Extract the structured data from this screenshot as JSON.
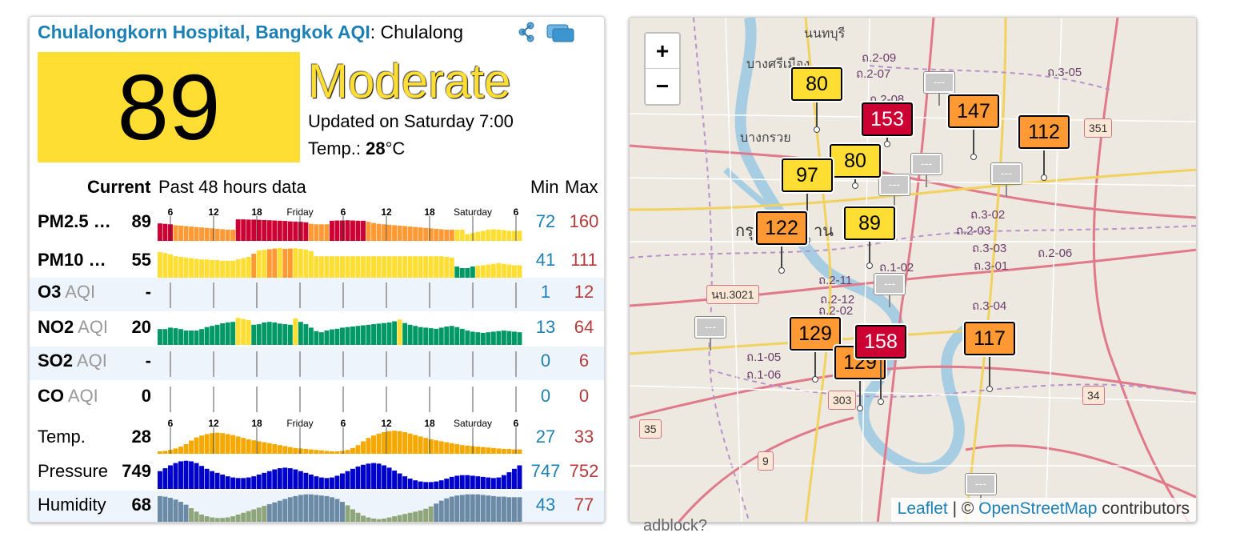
{
  "header": {
    "station_link": "Chulalongkorn Hospital, Bangkok AQI",
    "station_suffix": ": Chulalong"
  },
  "icons": {
    "share": "share-icon",
    "widget": "widget-icon"
  },
  "aqi": {
    "value": "89",
    "level": "Moderate",
    "updated": "Updated on Saturday 7:00",
    "temp_label": "Temp.: ",
    "temp_value": "28",
    "temp_unit": "°C",
    "level_color": "#ffde33"
  },
  "table": {
    "col_current": "Current",
    "col_past": "Past 48 hours data",
    "col_min": "Min",
    "col_max": "Max",
    "time_labels": [
      "6",
      "12",
      "18",
      "Friday",
      "6",
      "12",
      "18",
      "Saturday",
      "6"
    ],
    "rows": [
      {
        "name": "PM2.5 …",
        "aqi_tag": "",
        "current": "89",
        "min": "72",
        "max": "160",
        "bars": [
          0.78,
          0.76,
          0.74,
          0.7,
          0.68,
          0.66,
          0.64,
          0.62,
          0.6,
          0.58,
          0.56,
          0.54,
          0.52,
          0.5,
          0.5,
          0.96,
          0.96,
          0.95,
          0.95,
          0.94,
          0.93,
          0.92,
          0.91,
          0.9,
          0.89,
          0.87,
          0.86,
          0.85,
          0.83,
          0.76,
          0.74,
          0.74,
          0.74,
          0.9,
          0.91,
          0.91,
          0.92,
          0.91,
          0.9,
          0.9,
          0.85,
          0.8,
          0.76,
          0.74,
          0.72,
          0.7,
          0.68,
          0.66,
          0.64,
          0.62,
          0.6,
          0.58,
          0.56,
          0.54,
          0.52,
          0.5,
          0.5,
          0.5,
          0.5,
          0.3,
          0.35,
          0.4,
          0.45,
          0.5,
          0.52,
          0.5,
          0.48,
          0.45,
          0.45,
          0.45
        ],
        "colors": [
          "r",
          "r",
          "r",
          "o",
          "o",
          "o",
          "o",
          "o",
          "o",
          "o",
          "o",
          "o",
          "o",
          "o",
          "o",
          "r",
          "r",
          "r",
          "r",
          "r",
          "r",
          "r",
          "r",
          "r",
          "r",
          "r",
          "r",
          "r",
          "r",
          "o",
          "o",
          "o",
          "o",
          "r",
          "r",
          "r",
          "r",
          "r",
          "r",
          "r",
          "o",
          "o",
          "o",
          "o",
          "o",
          "o",
          "o",
          "o",
          "o",
          "o",
          "o",
          "o",
          "o",
          "o",
          "o",
          "o",
          "o",
          "y",
          "y",
          "y",
          "y",
          "y",
          "y",
          "y",
          "y",
          "y",
          "y",
          "y",
          "y",
          "y"
        ]
      },
      {
        "name": "PM10 …",
        "aqi_tag": "",
        "current": "55",
        "min": "41",
        "max": "111",
        "bars": [
          0.85,
          0.82,
          0.78,
          0.72,
          0.7,
          0.68,
          0.66,
          0.64,
          0.62,
          0.62,
          0.6,
          0.6,
          0.58,
          0.58,
          0.58,
          0.62,
          0.66,
          0.7,
          0.8,
          0.9,
          0.92,
          0.94,
          0.96,
          0.98,
          0.95,
          0.96,
          0.97,
          0.95,
          0.93,
          0.88,
          0.72,
          0.72,
          0.72,
          0.72,
          0.72,
          0.72,
          0.72,
          0.72,
          0.72,
          0.72,
          0.72,
          0.72,
          0.72,
          0.72,
          0.72,
          0.72,
          0.72,
          0.72,
          0.72,
          0.72,
          0.72,
          0.72,
          0.72,
          0.72,
          0.72,
          0.7,
          0.68,
          0.4,
          0.35,
          0.35,
          0.4,
          0.42,
          0.44,
          0.46,
          0.48,
          0.5,
          0.48,
          0.46,
          0.44,
          0.44
        ],
        "colors": [
          "y",
          "y",
          "y",
          "y",
          "y",
          "y",
          "y",
          "y",
          "y",
          "y",
          "y",
          "y",
          "y",
          "y",
          "y",
          "y",
          "y",
          "y",
          "o",
          "y",
          "y",
          "o",
          "o",
          "y",
          "o",
          "o",
          "y",
          "y",
          "y",
          "y",
          "y",
          "y",
          "y",
          "y",
          "y",
          "y",
          "y",
          "y",
          "y",
          "y",
          "y",
          "y",
          "y",
          "y",
          "y",
          "y",
          "y",
          "y",
          "y",
          "y",
          "y",
          "y",
          "y",
          "y",
          "y",
          "y",
          "y",
          "g",
          "g",
          "g",
          "g",
          "y",
          "y",
          "y",
          "y",
          "y",
          "y",
          "y",
          "y",
          "y"
        ]
      },
      {
        "name": "O3",
        "aqi_tag": " AQI",
        "current": "-",
        "min": "1",
        "max": "12",
        "bars": [],
        "colors": []
      },
      {
        "name": "NO2",
        "aqi_tag": " AQI",
        "current": "20",
        "min": "13",
        "max": "64",
        "bars": [
          0.55,
          0.55,
          0.6,
          0.58,
          0.55,
          0.5,
          0.5,
          0.5,
          0.55,
          0.62,
          0.66,
          0.7,
          0.75,
          0.78,
          0.8,
          0.94,
          0.9,
          0.86,
          0.7,
          0.72,
          0.78,
          0.8,
          0.78,
          0.74,
          0.72,
          0.7,
          0.92,
          0.8,
          0.72,
          0.6,
          0.48,
          0.44,
          0.5,
          0.54,
          0.56,
          0.6,
          0.62,
          0.64,
          0.66,
          0.68,
          0.7,
          0.72,
          0.74,
          0.76,
          0.78,
          0.82,
          0.88,
          0.76,
          0.7,
          0.66,
          0.62,
          0.6,
          0.58,
          0.56,
          0.6,
          0.64,
          0.66,
          0.62,
          0.56,
          0.5,
          0.46,
          0.44,
          0.42,
          0.44,
          0.46,
          0.48,
          0.5,
          0.48,
          0.46,
          0.44
        ],
        "colors": [
          "g",
          "g",
          "g",
          "g",
          "g",
          "g",
          "g",
          "g",
          "g",
          "g",
          "g",
          "g",
          "g",
          "g",
          "g",
          "y",
          "y",
          "y",
          "g",
          "g",
          "g",
          "g",
          "g",
          "g",
          "g",
          "g",
          "y",
          "g",
          "g",
          "g",
          "g",
          "g",
          "g",
          "g",
          "g",
          "g",
          "g",
          "g",
          "g",
          "g",
          "g",
          "g",
          "g",
          "g",
          "g",
          "g",
          "y",
          "g",
          "g",
          "g",
          "g",
          "g",
          "g",
          "g",
          "g",
          "g",
          "g",
          "g",
          "g",
          "g",
          "g",
          "g",
          "g",
          "g",
          "g",
          "g",
          "g",
          "g",
          "g",
          "g"
        ]
      },
      {
        "name": "SO2",
        "aqi_tag": " AQI",
        "current": "-",
        "min": "0",
        "max": "6",
        "bars": [],
        "colors": []
      },
      {
        "name": "CO",
        "aqi_tag": " AQI",
        "current": "0",
        "min": "0",
        "max": "0",
        "bars": [],
        "colors": []
      },
      {
        "name": "Temp.",
        "aqi_tag": "",
        "current": "28",
        "min": "27",
        "max": "33",
        "bars": [
          0.1,
          0.12,
          0.16,
          0.22,
          0.3,
          0.4,
          0.55,
          0.68,
          0.76,
          0.82,
          0.86,
          0.88,
          0.86,
          0.82,
          0.78,
          0.72,
          0.66,
          0.6,
          0.56,
          0.52,
          0.48,
          0.44,
          0.4,
          0.36,
          0.32,
          0.28,
          0.24,
          0.22,
          0.2,
          0.18,
          0.16,
          0.14,
          0.12,
          0.1,
          0.1,
          0.12,
          0.16,
          0.24,
          0.36,
          0.52,
          0.66,
          0.76,
          0.84,
          0.9,
          0.94,
          0.96,
          0.94,
          0.9,
          0.84,
          0.78,
          0.72,
          0.66,
          0.6,
          0.56,
          0.52,
          0.48,
          0.44,
          0.4,
          0.36,
          0.34,
          0.32,
          0.3,
          0.28,
          0.26,
          0.24,
          0.22,
          0.2,
          0.2,
          0.18,
          0.18
        ],
        "colors": []
      },
      {
        "name": "Pressure",
        "aqi_tag": "",
        "current": "749",
        "min": "747",
        "max": "752",
        "bars": [
          0.62,
          0.72,
          0.82,
          0.9,
          0.96,
          0.98,
          0.96,
          0.9,
          0.8,
          0.7,
          0.62,
          0.56,
          0.5,
          0.44,
          0.4,
          0.38,
          0.38,
          0.4,
          0.44,
          0.5,
          0.56,
          0.62,
          0.68,
          0.72,
          0.74,
          0.72,
          0.68,
          0.62,
          0.56,
          0.5,
          0.44,
          0.4,
          0.38,
          0.4,
          0.46,
          0.54,
          0.62,
          0.7,
          0.78,
          0.84,
          0.88,
          0.9,
          0.88,
          0.82,
          0.74,
          0.64,
          0.54,
          0.44,
          0.36,
          0.3,
          0.26,
          0.24,
          0.24,
          0.26,
          0.3,
          0.36,
          0.42,
          0.46,
          0.48,
          0.48,
          0.46,
          0.44,
          0.42,
          0.4,
          0.38,
          0.4,
          0.48,
          0.58,
          0.7,
          0.82
        ],
        "colors": []
      },
      {
        "name": "Humidity",
        "aqi_tag": "",
        "current": "68",
        "min": "43",
        "max": "77",
        "bars": [
          0.92,
          0.9,
          0.86,
          0.8,
          0.72,
          0.62,
          0.5,
          0.38,
          0.28,
          0.22,
          0.18,
          0.16,
          0.16,
          0.18,
          0.22,
          0.28,
          0.34,
          0.4,
          0.46,
          0.52,
          0.58,
          0.64,
          0.7,
          0.76,
          0.82,
          0.88,
          0.92,
          0.96,
          0.98,
          0.98,
          0.96,
          0.94,
          0.92,
          0.88,
          0.82,
          0.72,
          0.6,
          0.46,
          0.34,
          0.24,
          0.18,
          0.14,
          0.12,
          0.14,
          0.18,
          0.22,
          0.26,
          0.3,
          0.34,
          0.38,
          0.42,
          0.48,
          0.56,
          0.66,
          0.76,
          0.84,
          0.9,
          0.94,
          0.96,
          0.98,
          0.98,
          0.98,
          0.96,
          0.94,
          0.92,
          0.9,
          0.9,
          0.88,
          0.88,
          0.88
        ],
        "colors": []
      }
    ]
  },
  "colors": {
    "r": "#cc0033",
    "o": "#ff9933",
    "y": "#ffde33",
    "g": "#009966",
    "temp": "#f5a900",
    "pressure": "#0000cc",
    "humidity_a": "#8fa67a",
    "humidity_b": "#6a8aa6"
  },
  "map": {
    "zoom_in": "+",
    "zoom_out": "−",
    "attribution_leaflet": "Leaflet",
    "attribution_sep": " | © ",
    "attribution_osm": "OpenStreetMap",
    "attribution_tail": " contributors",
    "place_labels": [
      {
        "text": "นนทบุรี",
        "cls": "th"
      },
      {
        "text": "บางศรีเมือง",
        "cls": "th"
      },
      {
        "text": "บางกรวย",
        "cls": "th"
      },
      {
        "text": "กรุ",
        "cls": "th"
      },
      {
        "text": "าน",
        "cls": "th"
      },
      {
        "text": "ถ.2-09",
        "cls": "th"
      },
      {
        "text": "ถ.2-07",
        "cls": "th"
      },
      {
        "text": "ถ.2-08",
        "cls": "th"
      },
      {
        "text": "ถ.3-05",
        "cls": "th"
      },
      {
        "text": "ถ.3-02",
        "cls": "th"
      },
      {
        "text": "ถ.2-03",
        "cls": "th"
      },
      {
        "text": "ถ.3-03",
        "cls": "th"
      },
      {
        "text": "ถ.3-01",
        "cls": "th"
      },
      {
        "text": "ถ.2-06",
        "cls": "th"
      },
      {
        "text": "ถ.3-04",
        "cls": "th"
      },
      {
        "text": "ถ.2-11",
        "cls": "th"
      },
      {
        "text": "ถ.2-12",
        "cls": "th"
      },
      {
        "text": "ถ.2-02",
        "cls": "th"
      },
      {
        "text": "ถ.1-05",
        "cls": "th"
      },
      {
        "text": "ถ.1-06",
        "cls": "th"
      },
      {
        "text": "ถ.1-02",
        "cls": "th"
      }
    ],
    "shields": [
      "351",
      "นบ.3021",
      "303",
      "34",
      "35",
      "9"
    ],
    "markers": [
      {
        "value": "80",
        "level": "y"
      },
      {
        "value": "153",
        "level": "r"
      },
      {
        "value": "147",
        "level": "o"
      },
      {
        "value": "112",
        "level": "o"
      },
      {
        "value": "80",
        "level": "y"
      },
      {
        "value": "97",
        "level": "y"
      },
      {
        "value": "122",
        "level": "o"
      },
      {
        "value": "89",
        "level": "y"
      },
      {
        "value": "129",
        "level": "o"
      },
      {
        "value": "129",
        "level": "o"
      },
      {
        "value": "158",
        "level": "r"
      },
      {
        "value": "117",
        "level": "o"
      }
    ],
    "nodata_label": "---"
  },
  "below_map_text": "adblock?"
}
